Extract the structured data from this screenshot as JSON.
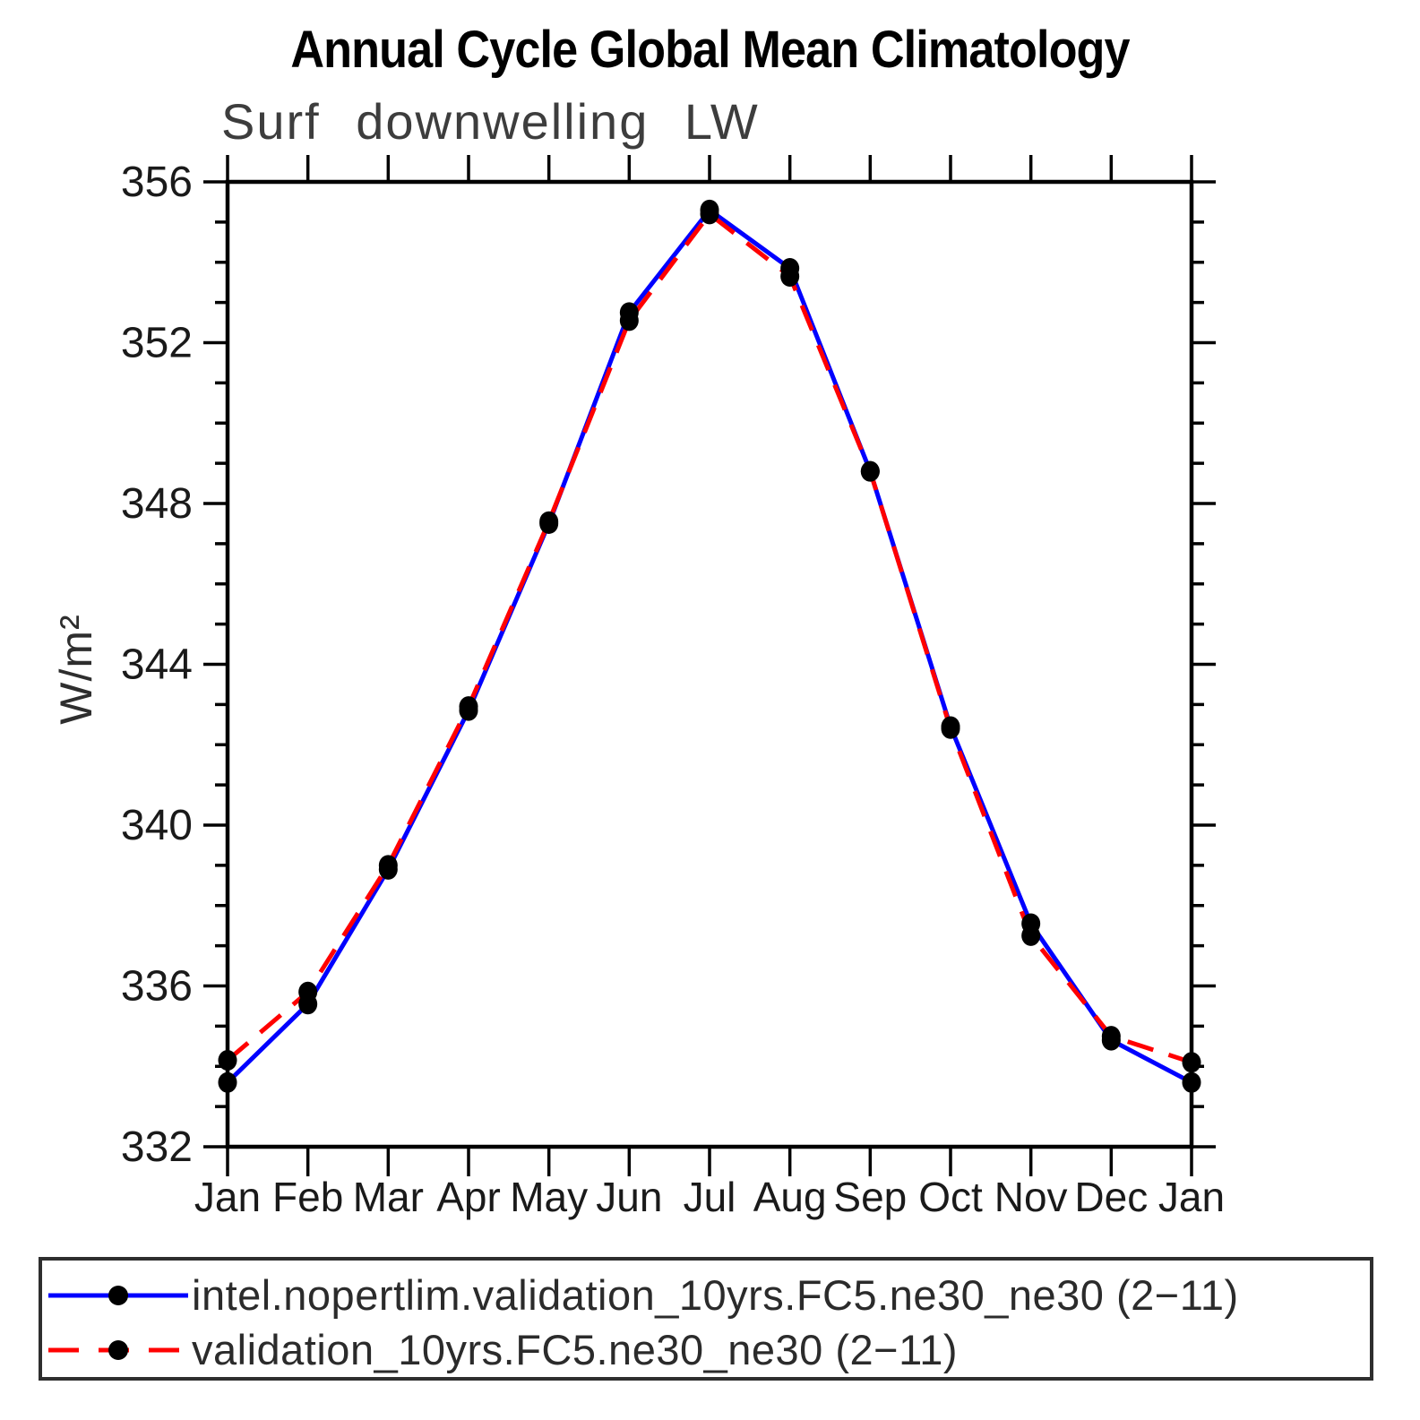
{
  "page": {
    "background": "#ffffff"
  },
  "chart_data": {
    "type": "line",
    "title": "Annual Cycle Global Mean Climatology",
    "subtitle": "Surf downwelling LW",
    "ylabel": "W/m²",
    "xlabel": "",
    "x_labels": [
      "Jan",
      "Feb",
      "Mar",
      "Apr",
      "May",
      "Jun",
      "Jul",
      "Aug",
      "Sep",
      "Oct",
      "Nov",
      "Dec",
      "Jan"
    ],
    "ylim": [
      332,
      356
    ],
    "ytick_major": [
      332,
      336,
      340,
      344,
      348,
      352,
      356
    ],
    "ytick_minor_step": 1,
    "grid": false,
    "legend_position": "bottom",
    "axis_color": "#000000",
    "marker_color": "#000000",
    "series": [
      {
        "name": "intel.nopertlim.validation_10yrs.FC5.ne30_ne30 (2−11)",
        "color": "#0000ff",
        "line_style": "solid",
        "marker": "circle",
        "values": [
          333.6,
          335.55,
          338.9,
          342.85,
          347.5,
          352.75,
          355.3,
          353.85,
          348.8,
          342.45,
          337.55,
          334.65,
          333.6
        ]
      },
      {
        "name": "validation_10yrs.FC5.ne30_ne30 (2−11)",
        "color": "#ff0000",
        "line_style": "dashed",
        "marker": "circle",
        "values": [
          334.15,
          335.85,
          339.0,
          342.95,
          347.55,
          352.55,
          355.2,
          353.65,
          348.8,
          342.4,
          337.25,
          334.75,
          334.1
        ]
      }
    ]
  }
}
